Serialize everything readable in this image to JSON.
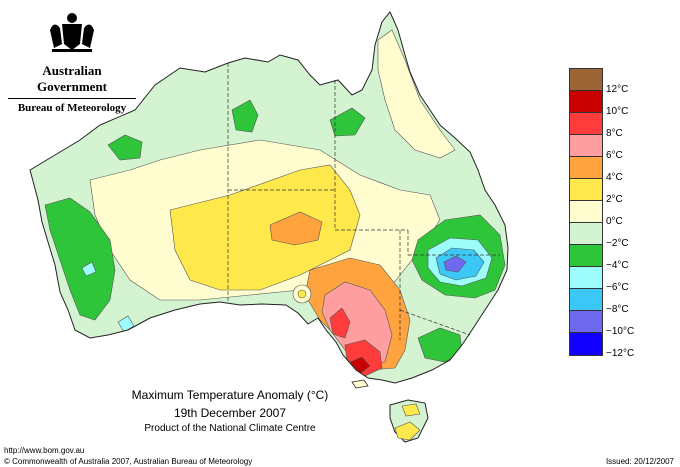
{
  "header": {
    "government": "Australian Government",
    "bureau": "Bureau of Meteorology"
  },
  "map": {
    "title_line1": "Maximum Temperature Anomaly (°C)",
    "title_line2": "19th December 2007",
    "title_line3": "Product of the National Climate Centre"
  },
  "footer": {
    "url": "http://www.bom.gov.au",
    "copyright": "© Commonwealth of Australia 2007, Australian Bureau of Meteorology",
    "issued": "Issued: 20/12/2007"
  },
  "legend": {
    "swatch_colors": [
      "#9c6535",
      "#c80000",
      "#ff3c3c",
      "#ff9e9e",
      "#ffa33f",
      "#ffe84b",
      "#fffdcf",
      "#d4f3d1",
      "#2fc53a",
      "#9dfdfb",
      "#3bc8f7",
      "#6e69ef",
      "#1200ff"
    ],
    "labels": [
      "12°C",
      "10°C",
      "8°C",
      "6°C",
      "4°C",
      "2°C",
      "0°C",
      "−2°C",
      "−4°C",
      "−6°C",
      "−8°C",
      "−10°C",
      "−12°C"
    ]
  },
  "colors": {
    "cool_minus_2": "#d4f3d1",
    "cool_minus_4": "#2fc53a",
    "neutral_0": "#fffdcf",
    "warm_2": "#ffe84b",
    "warm_4": "#ffa33f",
    "warm_6": "#ff9e9e",
    "warm_8": "#ff3c3c",
    "warm_10": "#c80000",
    "cold_minus_6": "#9dfdfb",
    "cold_minus_8": "#3bc8f7",
    "cold_minus_10": "#6e69ef"
  }
}
